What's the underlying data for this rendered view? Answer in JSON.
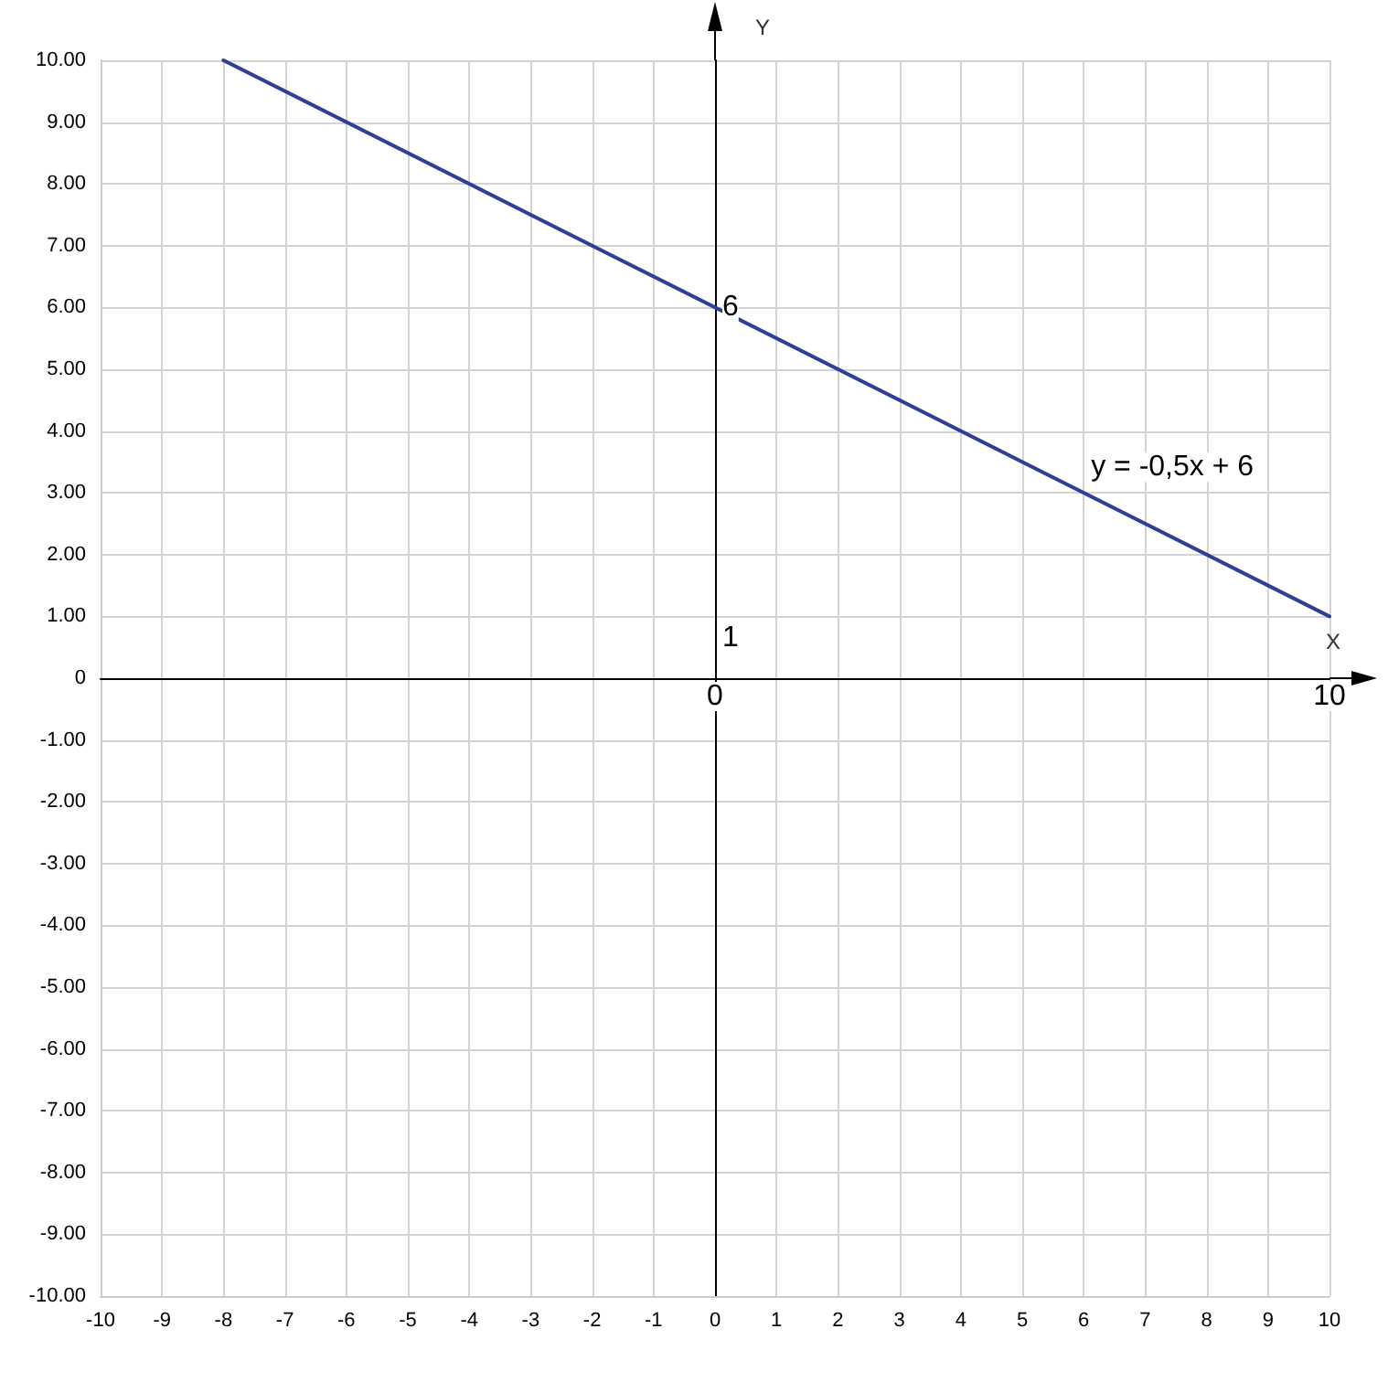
{
  "chart_data": {
    "type": "line",
    "xlabel": "X",
    "ylabel": "Y",
    "series": [
      {
        "color": "#2e3f95",
        "x": [
          -8,
          10
        ],
        "values": [
          10,
          1
        ]
      }
    ],
    "xlim": [
      -10,
      10
    ],
    "xticks": [
      -10,
      -9,
      -8,
      -7,
      -6,
      -5,
      -4,
      -3,
      -2,
      -1,
      0,
      1,
      2,
      3,
      4,
      5,
      6,
      7,
      8,
      9,
      10
    ],
    "ylim": [
      -10,
      10
    ],
    "yticks": [
      {
        "value": -10,
        "label": "-10.00"
      },
      {
        "value": -9,
        "label": "-9.00"
      },
      {
        "value": -8,
        "label": "-8.00"
      },
      {
        "value": -7,
        "label": "-7.00"
      },
      {
        "value": -6,
        "label": "-6.00"
      },
      {
        "value": -5,
        "label": "-5.00"
      },
      {
        "value": -4,
        "label": "-4.00"
      },
      {
        "value": -3,
        "label": "-3.00"
      },
      {
        "value": -2,
        "label": "-2.00"
      },
      {
        "value": -1,
        "label": "-1.00"
      },
      {
        "value": 0,
        "label": "0"
      },
      {
        "value": 1,
        "label": "1.00"
      },
      {
        "value": 2,
        "label": "2.00"
      },
      {
        "value": 3,
        "label": "3.00"
      },
      {
        "value": 4,
        "label": "4.00"
      },
      {
        "value": 5,
        "label": "5.00"
      },
      {
        "value": 6,
        "label": "6.00"
      },
      {
        "value": 7,
        "label": "7.00"
      },
      {
        "value": 8,
        "label": "8.00"
      },
      {
        "value": 9,
        "label": "9.00"
      },
      {
        "value": 10,
        "label": "10.00"
      }
    ],
    "grid": true,
    "marker": "none",
    "line_style": "solid",
    "annotations": [
      {
        "text": "y = -0,5x + 6",
        "x": 6,
        "y": 3
      },
      {
        "text": "6",
        "x": 0,
        "y": 6
      },
      "1",
      "0",
      "10"
    ]
  }
}
